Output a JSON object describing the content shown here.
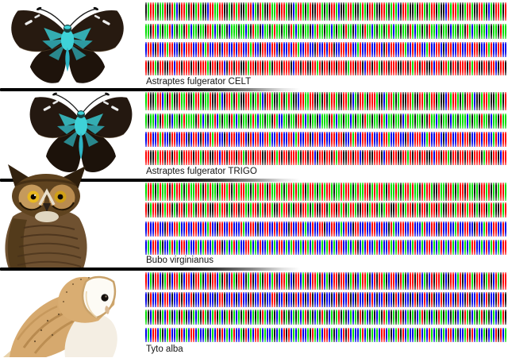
{
  "figure": {
    "background_color": "#ffffff",
    "separator_color": "#000000",
    "nucleotide_colors": {
      "A": "#00dc00",
      "T": "#ff0000",
      "G": "#161616",
      "C": "#0000e8"
    },
    "sections": [
      {
        "label": "Astraptes fulgerator CELT",
        "image": "astraptes-fulgerator-celt-specimen-photo",
        "rows": [
          "GATTAGAATGGTACGTTAGTGATAGGCTTAATTGGAGTATGGATTCAGTAGGTAATGTTAGGCATTAGATGGTTAGAGTTACGGATTAGGATAGTTAGGTTAGATACGTTAGGAGTTAGATTGAGGCTATTAGGATTAGGTTAGCAGTTAGT",
          "AAGTACAGAATCAGAAGTACAAGAAGTTACAGAAGCAAAGAACAGTAAGCAAGATAAGAAGTACAAGAAGCATAAGAACAGAAGTAAGCAAGTAACAGAAGATACAAGAAGTACAAGAGTAACAGAAGCAAGAAGTACAAGAACAGAAGTAA",
          "CTTCGTCCTATTCCGTCTTTCCTTCATCCTTGCTTCCTCTTCCTATCCGTTCCTTCGTCCTCTTACCTTCCGTCCTCTTGCCTTCTTCCATCCTTCCTTCGTCTTCCTTACCTCTTCCATCCTTCGCTTCCTTCCTTCTTGCCTATCCTTCC",
          "TGTTAGTTGGTTCTTGTTTGTTGTTTAGTTGTTCGTTGTTGGTATTGTTGTTAGTTTGTTTGCTTGTTGGTTATGTTGTTGTTTGATTGTTGCTTGTTAGTTGTTTGGTTGTATTGTTGGTCTTGTTAGTTGTTTGTATTGGTTGTTCGTTG"
        ]
      },
      {
        "label": "Astraptes fulgerator TRIGO",
        "image": "astraptes-fulgerator-trigo-specimen-photo",
        "rows": [
          "ATGGATTCAGTAGGTAATGGATTAGAATGGTACGTTAGTAGGTTAGATACGTTAGGATGATAGGCTTAATTGGAGTGATTAGGTTAGCAGTTAGTTTAGGCATTAGATGGTTAGGTTAGATTGAGGCTATTAGAGTTACGGATTAGGATAGT",
          "AGAACAGTAAGCAAGATAAAAGTACAGAATCAGAAGTACAGAAGATACAAGAAGTACCAAGAAGTTACAGAAGCAAAGTACAAGAACAGAAGTAAGAAGTACAAGAAGCATAAGAAGAGTAACAGAAGCAAGAAACAGAAGTAAGCAAGTAA",
          "CTTCCTATCCGTTCCTTCGCTTCGTCCTATTCCGTCTTCCTTCGTCTTCCTTACCTCTCCTTCATCCTTGCTTCCTCCTTCTTGCCTATCCTTCCTCCTCTTACCTTCCGTCCTTTCCATCCTTCGCTTCCTTCTTGCCTTCTTCCATCCTT",
          "TTGGTATTGTTGTTAGTTTTGTTAGTTGGTTCTTGTTTGTTAGTTGTTTGGTTGTATGTTGTTTAGTTGTTCGTTGTTGTATTGGTTGTTCGTTGGTTTGCTTGTTGGTTATGTTGTTGGTCTTGTTAGTTGTTGTTGTTTGATTGTTGCTT"
        ]
      },
      {
        "label": "Bubo virginianus",
        "image": "bubo-virginianus-great-horned-owl-photo",
        "rows": [
          "ATTAGATAATGTATTAGATAATTAGTATAAGATTATGATATTAAGATATTAGTAATTAGATTATAATGATTAGATATTAGAATATTAGATAATTGATATTAGTAATAGATTATAAGTATTAGGTAAGTTAGATTGTAAGAGTTATGAGATTA",
          "TGATTGGTATTGAGTTGATTAGTTGATGGTTATTGAGTTGTTAGATTGATGTTAGGTATTGAGTTGTTAGATGGTTGATTGTATGATTAGGTTGATTGAGATTGGTATGATTGTAGTTGATTGTAGGTTGATTGTATTGAGTTGATAGGTAT",
          "CTCCTTCCGTCCTTACCTCCTTCCTCATCCGTTCCTTCCCTACCTTCGCCTTCCTCTTCCGTCCTTCACCTCCTTGCCTTCCACTCCGTTCCTCCTTCCTCCGTACCTTCCTTCCCATCCTTCGTCCTCCATCCTTCCGTCCATCCTTCCTC",
          "CACTTCAGCCATCACTTCACCTACATCCACTTGCACATCACCTTACACTCCATCACTTCACATCCACTACATCCACATCACTTCCACATGCACTCCATCACCTACATTCACCATCCACTTCACATCACTACATCACATTCCACTCATCACTT"
        ]
      },
      {
        "label": "Tyto alba",
        "image": "tyto-alba-barn-owl-photo",
        "rows": [
          "TCAGTTCGATGCTTAGCTTCGTTAGCTGTTCAGTGCTAGTTCGATGCTAGTTCATGCTTAGCGTTCATGCTTAGTCAGCTTGTTCGATGCATTAGCTGTTAGCTTCGTAGCTTGTTCAGCTGTTAGCGTTCATGCTTAGTTCGATGCTAGTT",
          "CGTCCTGCTTCGCCTGTCCTGCCTCGTCCGCTTGCCTCGCTCCGTGCCTCGCCTTGCCTGCCGTCTCGCTGCCTCGCCGCTGTCCTGCGTCCTGCTCGCCTGCCGTCTGCCGCTGCCTCGTGCCTGCCTCGTCCGTGCCTCGCTGCCGTCTG",
          "AGCATGGACTAGCAGTAGCGACAGTAGCATGACGATGACAGATGCAGAGTACGAGCATGAGCAGACATGAGCAGTAGCAGATGAGCACAGTGACGAGCAGTACGAGATGCAGAGCATGAGCAGTAGACGAGCAGTAGCAGATGAGCACGATG",
          "CACTTCAGCATCCAGTCACTTCACCAGCACTGTCACATCCAGTCACTTACACCAGCACTGTCACATCCAGTACACTTCAGCACTGTCACCATCAGACACTTCAGCATGTCACCAGTCACTACAGCACTTCAGCCATGTCACCAGCACTGTCA"
        ]
      }
    ]
  }
}
